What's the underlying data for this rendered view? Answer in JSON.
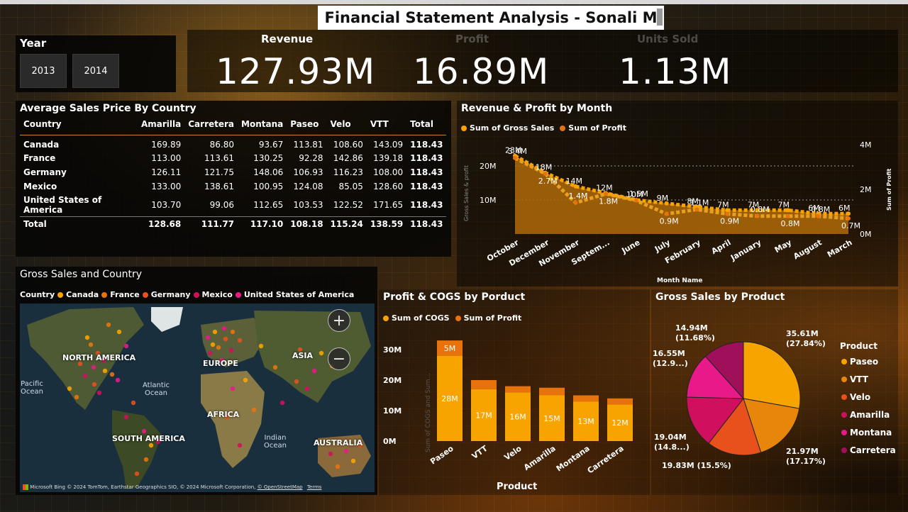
{
  "title": "Financial Statement Analysis - Sonali M",
  "year_slicer": {
    "label": "Year",
    "options": [
      "2013",
      "2014"
    ]
  },
  "kpis": [
    {
      "label": "Revenue",
      "value": "127.93M"
    },
    {
      "label": "Profit",
      "value": "16.89M"
    },
    {
      "label": "Units Sold",
      "value": "1.13M"
    }
  ],
  "avg_price_table": {
    "title": "Average Sales Price By Country",
    "columns": [
      "Country",
      "Amarilla",
      "Carretera",
      "Montana",
      "Paseo",
      "Velo",
      "VTT",
      "Total"
    ],
    "rows": [
      [
        "Canada",
        "169.89",
        "86.80",
        "93.67",
        "113.81",
        "108.60",
        "143.09",
        "118.43"
      ],
      [
        "France",
        "113.00",
        "113.61",
        "130.25",
        "92.28",
        "142.86",
        "139.18",
        "118.43"
      ],
      [
        "Germany",
        "126.11",
        "121.75",
        "148.06",
        "106.93",
        "116.23",
        "108.00",
        "118.43"
      ],
      [
        "Mexico",
        "133.00",
        "138.61",
        "100.95",
        "124.08",
        "85.05",
        "128.60",
        "118.43"
      ],
      [
        "United States of America",
        "103.70",
        "99.06",
        "112.65",
        "103.53",
        "122.52",
        "171.65",
        "118.43"
      ]
    ],
    "total_row": [
      "Total",
      "128.68",
      "111.77",
      "117.10",
      "108.18",
      "115.24",
      "138.59",
      "118.43"
    ]
  },
  "colors": {
    "gross": "#f7a400",
    "profit": "#e8730c",
    "germany": "#e8501c",
    "mexico": "#d0105e",
    "usa": "#e81a8a",
    "carretera": "#a0105a"
  },
  "chart_data": [
    {
      "type": "area",
      "title": "Revenue & Profit by Month",
      "legend": [
        "Sum of Gross Sales",
        "Sum of Profit"
      ],
      "xlabel": "Month Name",
      "ylabel": "Gross Sales & profit",
      "y2label": "Sum of Profit",
      "categories": [
        "October",
        "December",
        "November",
        "Septem...",
        "June",
        "July",
        "February",
        "April",
        "January",
        "May",
        "August",
        "March"
      ],
      "y_ticks": [
        "10M",
        "20M"
      ],
      "y2_ticks": [
        "0M",
        "2M",
        "4M"
      ],
      "series": [
        {
          "name": "Sum of Gross Sales",
          "values": [
            23,
            18,
            14,
            12,
            10,
            9,
            8,
            7,
            7,
            7,
            6,
            6
          ],
          "labels": [
            "23M",
            "18M",
            "14M",
            "12M",
            "10M",
            "9M",
            "8M",
            "7M",
            "7M",
            "7M",
            "6M",
            "6M"
          ]
        },
        {
          "name": "Sum of Profit",
          "values": [
            3.4,
            2.7,
            1.4,
            1.8,
            1.5,
            0.9,
            1.1,
            0.9,
            0.8,
            0.8,
            0.8,
            0.7
          ],
          "labels": [
            "3.4M",
            "2.7M",
            "1.4M",
            "1.8M",
            "1.5M",
            "0.9M",
            "1.1M",
            "0.9M",
            "0.8M",
            "0.8M",
            "0.8M",
            "0.7M"
          ]
        }
      ]
    },
    {
      "type": "bar",
      "title": "Profit & COGS by Porduct",
      "legend": [
        "Sum of COGS",
        "Sum of Profit"
      ],
      "xlabel": "Product",
      "ylabel": "Sum of COGS and Sum...",
      "categories": [
        "Paseo",
        "VTT",
        "Velo",
        "Amarilla",
        "Montana",
        "Carretera"
      ],
      "y_ticks": [
        "0M",
        "10M",
        "20M",
        "30M"
      ],
      "series": [
        {
          "name": "Sum of COGS",
          "values": [
            28,
            17,
            16,
            15,
            13,
            12
          ],
          "labels": [
            "28M",
            "17M",
            "16M",
            "15M",
            "13M",
            "12M"
          ]
        },
        {
          "name": "Sum of Profit",
          "values": [
            5,
            3,
            2,
            2.5,
            2,
            2
          ],
          "labels": [
            "5M",
            "",
            "",
            "",
            "",
            ""
          ]
        }
      ]
    },
    {
      "type": "pie",
      "title": "Gross Sales by Product",
      "legend_title": "Product",
      "slices": [
        {
          "name": "Paseo",
          "value": 35.61,
          "label": "35.61M",
          "pct": "(27.84%)"
        },
        {
          "name": "VTT",
          "value": 21.97,
          "label": "21.97M",
          "pct": "(17.17%)"
        },
        {
          "name": "Velo",
          "value": 19.83,
          "label": "19.83M (15.5%)",
          "pct": ""
        },
        {
          "name": "Amarilla",
          "value": 19.04,
          "label": "19.04M",
          "pct": "(14.8...)"
        },
        {
          "name": "Montana",
          "value": 16.55,
          "label": "16.55M",
          "pct": "(12.9...)"
        },
        {
          "name": "Carretera",
          "value": 14.94,
          "label": "14.94M",
          "pct": "(11.68%)"
        }
      ]
    }
  ],
  "map": {
    "title": "Gross Sales and Country",
    "legend_title": "Country",
    "legend": [
      "Canada",
      "France",
      "Germany",
      "Mexico",
      "United States of America"
    ],
    "labels": {
      "na": "NORTH AMERICA",
      "eu": "EUROPE",
      "asia": "ASIA",
      "africa": "AFRICA",
      "sa": "SOUTH AMERICA",
      "aus": "AUSTRALIA"
    },
    "oceans": {
      "pacific": "Pacific Ocean",
      "atlantic": "Atlantic Ocean",
      "indian": "Indian Ocean"
    },
    "zoom_in": "+",
    "zoom_out": "−",
    "credit_brand": "Microsoft Bing",
    "credit": "© 2024 TomTom, Earthstar Geographics SIO, © 2024 Microsoft Corporation,",
    "credit_link": "© OpenStreetMap",
    "terms": "Terms"
  }
}
